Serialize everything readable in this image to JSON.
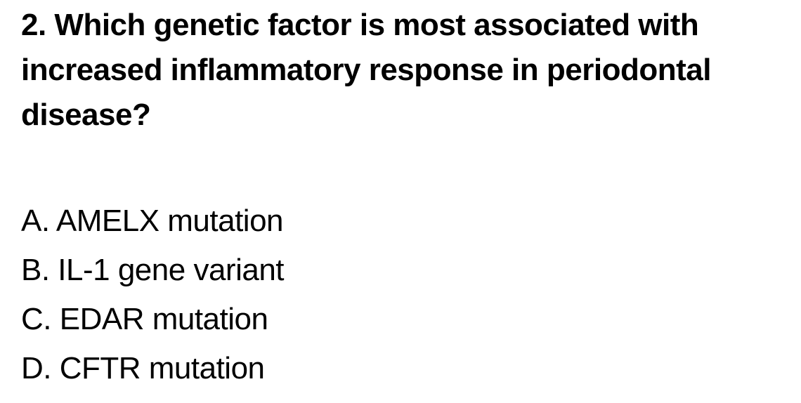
{
  "question": {
    "label": "2. Which genetic factor is most associated with increased inflammatory response in periodontal disease?",
    "number": "2"
  },
  "options": [
    {
      "label": "A. AMELX mutation",
      "letter": "A"
    },
    {
      "label": "B. IL-1 gene variant",
      "letter": "B"
    },
    {
      "label": "C. EDAR mutation",
      "letter": "C"
    },
    {
      "label": "D. CFTR mutation",
      "letter": "D"
    }
  ],
  "colors": {
    "background": "#ffffff",
    "text": "#000000"
  }
}
